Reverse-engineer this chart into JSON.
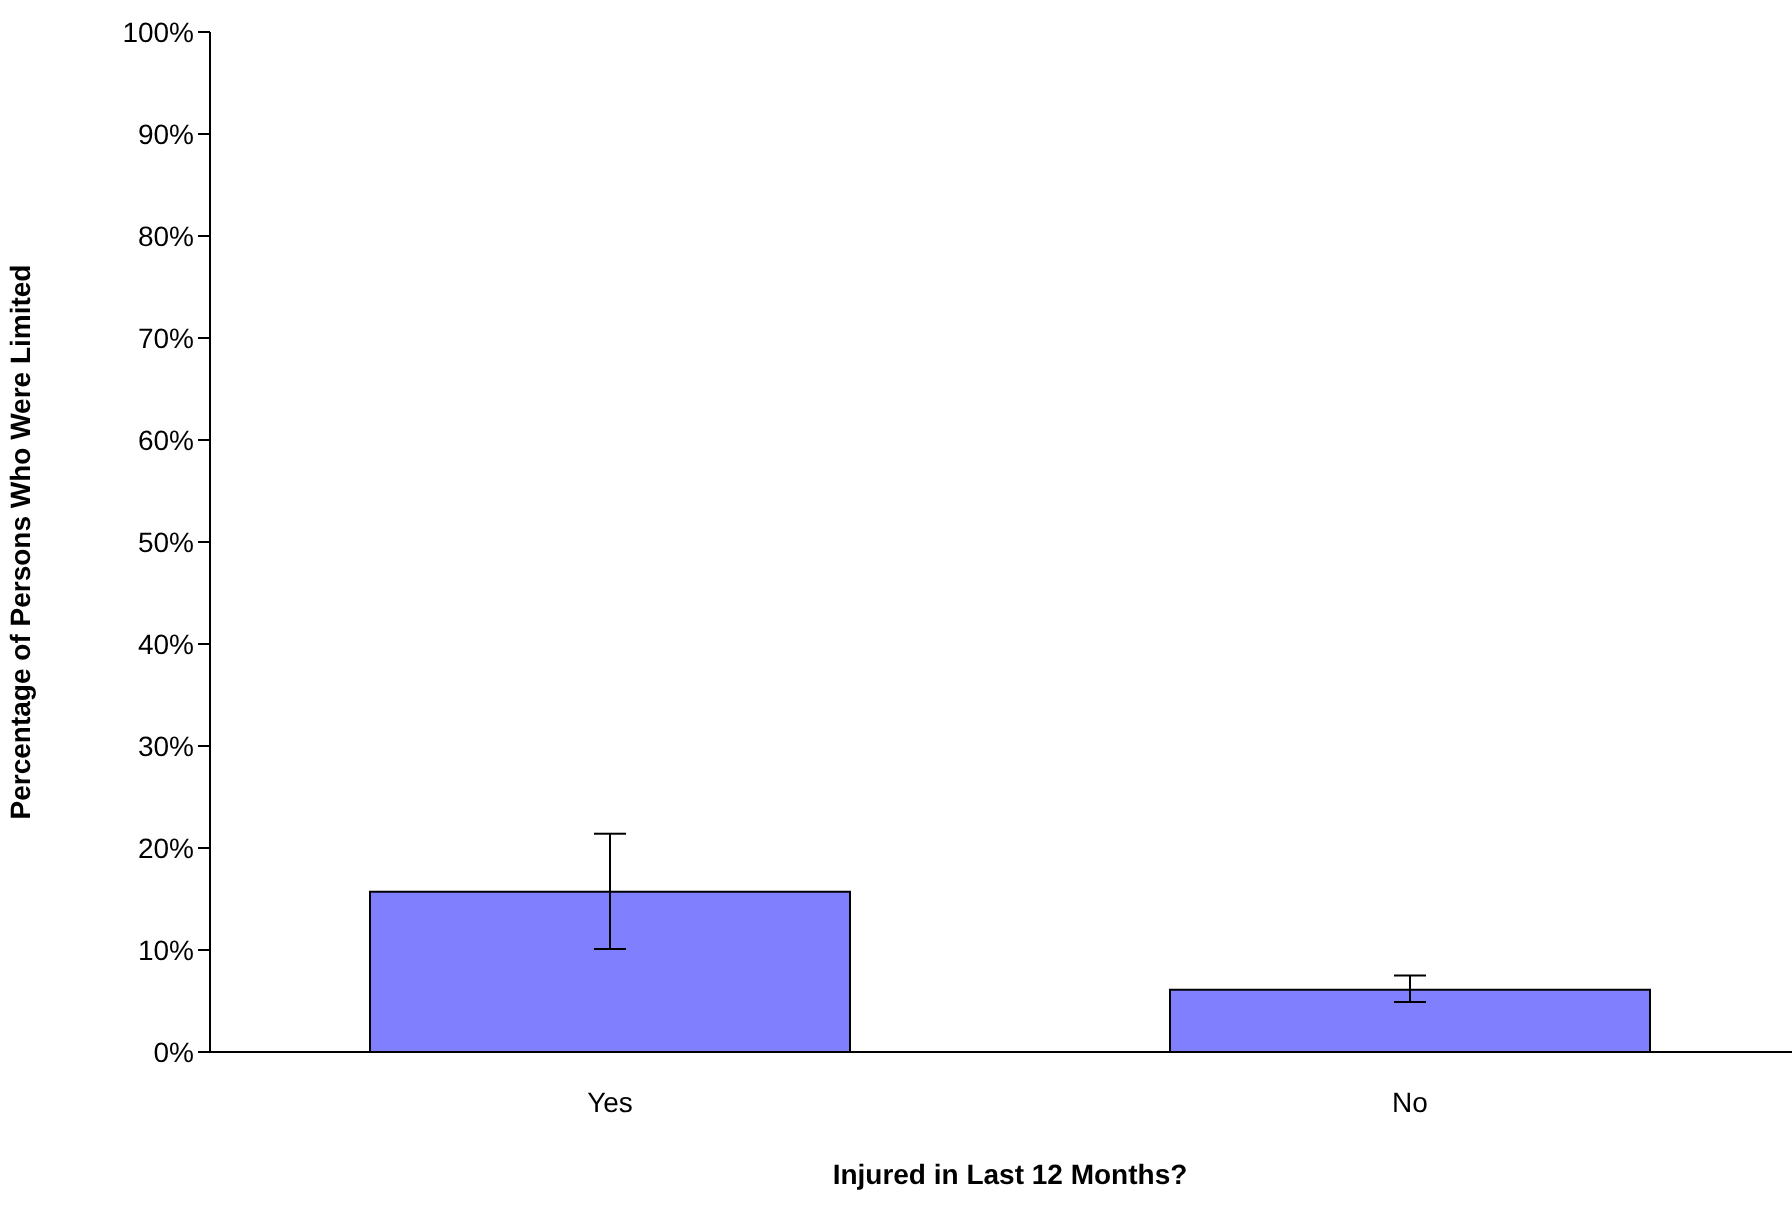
{
  "chart_data": {
    "type": "bar",
    "xlabel": "Injured in Last 12 Months?",
    "ylabel": "Percentage of Persons Who Were Limited",
    "categories": [
      "Yes",
      "No"
    ],
    "values": [
      15.7,
      6.1
    ],
    "errors": [
      [
        10.1,
        21.4
      ],
      [
        4.9,
        7.5
      ]
    ],
    "color": "#8080ff",
    "ylim": [
      0,
      100
    ],
    "yticks": [
      {
        "value": 0,
        "label": "0%"
      },
      {
        "value": 10,
        "label": "10%"
      },
      {
        "value": 20,
        "label": "20%"
      },
      {
        "value": 30,
        "label": "30%"
      },
      {
        "value": 40,
        "label": "40%"
      },
      {
        "value": 50,
        "label": "50%"
      },
      {
        "value": 60,
        "label": "60%"
      },
      {
        "value": 70,
        "label": "70%"
      },
      {
        "value": 80,
        "label": "80%"
      },
      {
        "value": 90,
        "label": "90%"
      },
      {
        "value": 100,
        "label": "100%"
      }
    ],
    "grid": false,
    "legend": false
  }
}
